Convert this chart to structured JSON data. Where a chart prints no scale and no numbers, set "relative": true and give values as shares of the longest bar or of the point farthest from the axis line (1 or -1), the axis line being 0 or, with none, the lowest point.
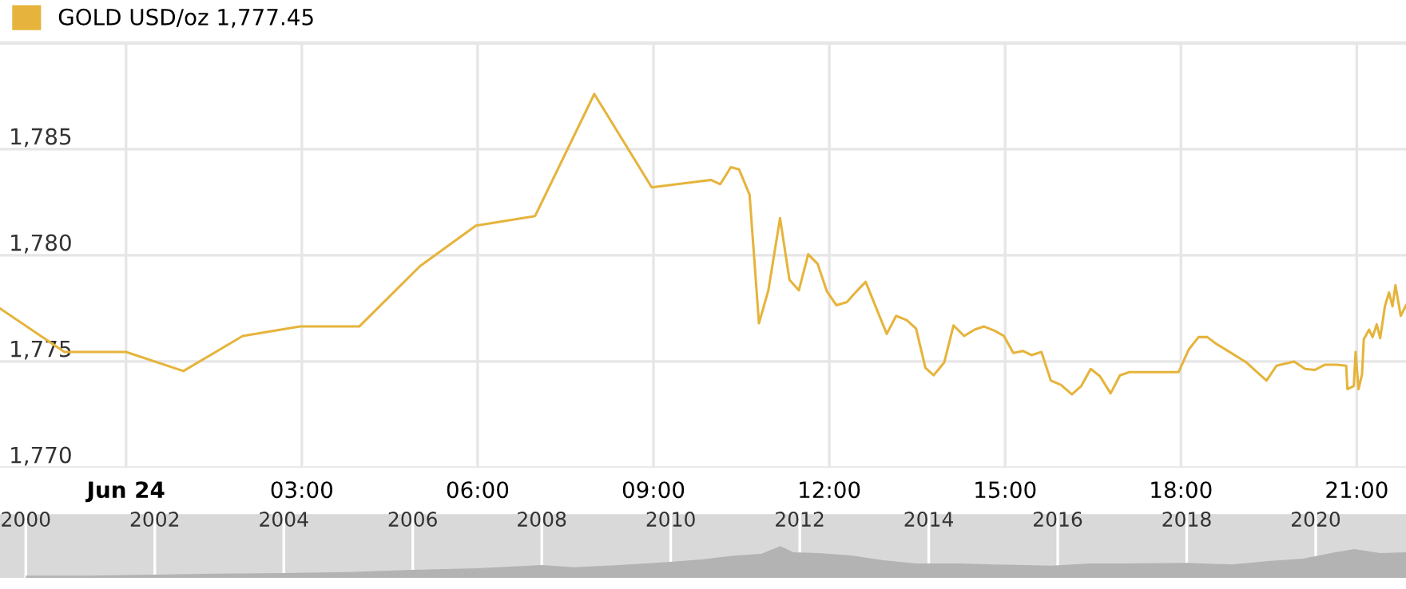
{
  "chart_data": [
    {
      "type": "line",
      "legend": "top left",
      "grid": true,
      "marker": "none",
      "line_style": "solid",
      "xlim": [
        -2.15,
        21.84
      ],
      "ylim": [
        1770,
        1790
      ],
      "xticks": [
        {
          "value": 0,
          "label": "Jun 24"
        },
        {
          "value": 3,
          "label": "03:00"
        },
        {
          "value": 6,
          "label": "06:00"
        },
        {
          "value": 9,
          "label": "09:00"
        },
        {
          "value": 12,
          "label": "12:00"
        },
        {
          "value": 15,
          "label": "15:00"
        },
        {
          "value": 18,
          "label": "18:00"
        },
        {
          "value": 21,
          "label": "21:00"
        }
      ],
      "yticks": [
        {
          "value": 1770,
          "label": "1,770"
        },
        {
          "value": 1775,
          "label": "1,775"
        },
        {
          "value": 1780,
          "label": "1,780"
        },
        {
          "value": 1785,
          "label": "1,785"
        }
      ],
      "series": [
        {
          "name": "GOLD USD/oz 1,777.45",
          "color": "#e6b43c",
          "x": [
            -2.15,
            -1.05,
            0,
            0.98,
            1.99,
            2.97,
            3.98,
            5.02,
            5.97,
            6.98,
            7.99,
            8.97,
            9.84,
            9.98,
            10.14,
            10.32,
            10.46,
            10.64,
            10.8,
            10.96,
            11.16,
            11.32,
            11.48,
            11.64,
            11.8,
            11.96,
            12.12,
            12.3,
            12.48,
            12.62,
            12.98,
            13.14,
            13.32,
            13.48,
            13.64,
            13.78,
            13.96,
            14.12,
            14.3,
            14.48,
            14.64,
            14.82,
            14.98,
            15.14,
            15.3,
            15.45,
            15.62,
            15.78,
            15.95,
            16.14,
            16.3,
            16.46,
            16.62,
            16.8,
            16.96,
            17.12,
            17.96,
            18.13,
            18.3,
            18.45,
            18.62,
            18.8,
            19.12,
            19.46,
            19.63,
            19.93,
            20.12,
            20.28,
            20.46,
            20.66,
            20.82,
            20.84,
            20.95,
            20.98,
            21.03,
            21.09,
            21.12,
            21.21,
            21.27,
            21.34,
            21.4,
            21.48,
            21.55,
            21.61,
            21.66,
            21.75,
            21.84
          ],
          "values": [
            1777.5,
            1775.45,
            1775.45,
            1774.55,
            1776.2,
            1776.65,
            1776.65,
            1779.5,
            1781.4,
            1781.85,
            1787.6,
            1783.2,
            1783.5,
            1783.55,
            1783.35,
            1784.15,
            1784.05,
            1782.85,
            1776.8,
            1778.35,
            1781.75,
            1778.85,
            1778.35,
            1780.05,
            1779.6,
            1778.3,
            1777.65,
            1777.8,
            1778.35,
            1778.75,
            1776.3,
            1777.15,
            1776.95,
            1776.55,
            1774.7,
            1774.35,
            1774.95,
            1776.7,
            1776.2,
            1776.5,
            1776.65,
            1776.45,
            1776.2,
            1775.4,
            1775.5,
            1775.3,
            1775.45,
            1774.1,
            1773.9,
            1773.45,
            1773.85,
            1774.65,
            1774.3,
            1773.5,
            1774.35,
            1774.5,
            1774.5,
            1775.55,
            1776.15,
            1776.15,
            1775.8,
            1775.5,
            1774.95,
            1774.1,
            1774.8,
            1775.0,
            1774.65,
            1774.6,
            1774.85,
            1774.85,
            1774.8,
            1773.7,
            1773.85,
            1775.45,
            1773.7,
            1774.4,
            1776.05,
            1776.5,
            1776.15,
            1776.75,
            1776.1,
            1777.6,
            1778.25,
            1777.6,
            1778.6,
            1777.15,
            1777.65
          ]
        }
      ]
    },
    {
      "type": "area",
      "relative": true,
      "grid": "x",
      "color": "#b3b3b3",
      "xlim": [
        1999.6,
        2021.4
      ],
      "xticks": [
        2000,
        2002,
        2004,
        2006,
        2008,
        2010,
        2012,
        2014,
        2016,
        2018,
        2020
      ],
      "x": [
        2000,
        2001,
        2002,
        2003,
        2004,
        2005,
        2006,
        2007,
        2008,
        2008.5,
        2009,
        2010,
        2010.5,
        2011,
        2011.4,
        2011.7,
        2011.9,
        2012.3,
        2012.8,
        2013.3,
        2013.8,
        2014.5,
        2015,
        2015.9,
        2016.5,
        2017,
        2018,
        2018.7,
        2019.3,
        2019.8,
        2020.3,
        2020.6,
        2021,
        2021.4
      ],
      "values": [
        0.07,
        0.07,
        0.1,
        0.13,
        0.15,
        0.18,
        0.25,
        0.3,
        0.4,
        0.33,
        0.38,
        0.5,
        0.58,
        0.7,
        0.75,
        1.0,
        0.8,
        0.78,
        0.7,
        0.55,
        0.45,
        0.45,
        0.42,
        0.38,
        0.45,
        0.45,
        0.47,
        0.42,
        0.53,
        0.6,
        0.8,
        0.9,
        0.78,
        0.8
      ]
    }
  ]
}
